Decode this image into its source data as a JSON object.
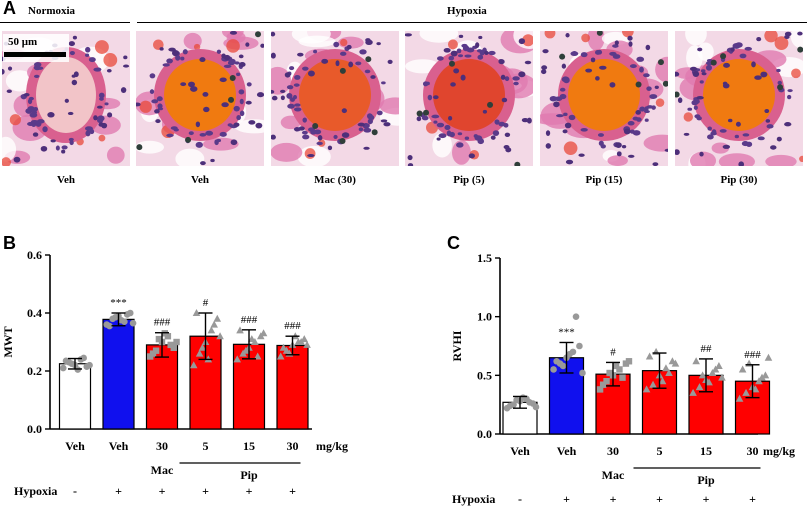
{
  "panel_a": {
    "letter": "A",
    "group_normoxia": "Normoxia",
    "group_hypoxia": "Hypoxia",
    "scale_bar": "50 μm",
    "captions": [
      "Veh",
      "Veh",
      "Mac (30)",
      "Pip (5)",
      "Pip (15)",
      "Pip (30)"
    ],
    "lumen_colors": [
      "#f2c4c8",
      "#f07a10",
      "#e85a2a",
      "#e0452e",
      "#f07a10",
      "#f07a10"
    ]
  },
  "panel_b": {
    "letter": "B"
  },
  "panel_c": {
    "letter": "C"
  },
  "colors": {
    "white_bar": "#ffffff",
    "blue_bar": "#1010ee",
    "red_bar": "#ff0000",
    "marker": "#999999"
  },
  "chart_data": [
    {
      "type": "bar",
      "panel": "B",
      "ylabel": "MWT",
      "ylim": [
        0,
        0.6
      ],
      "yticks": [
        "0.0",
        "0.2",
        "0.4",
        "0.6"
      ],
      "categories": [
        "Veh",
        "Veh",
        "30",
        "5",
        "15",
        "30"
      ],
      "unit_label": "mg/kg",
      "values": [
        0.225,
        0.378,
        0.29,
        0.32,
        0.292,
        0.288
      ],
      "errors": [
        0.018,
        0.022,
        0.042,
        0.08,
        0.05,
        0.032
      ],
      "bar_colors": [
        "#ffffff",
        "#1010ee",
        "#ff0000",
        "#ff0000",
        "#ff0000",
        "#ff0000"
      ],
      "markers": [
        "circle",
        "circle",
        "square",
        "triangle",
        "triangle",
        "triangle"
      ],
      "significance": [
        "",
        "***",
        "###",
        "#",
        "###",
        "###"
      ],
      "points": [
        [
          0.21,
          0.23,
          0.22,
          0.24,
          0.215,
          0.235,
          0.225,
          0.205,
          0.245,
          0.22
        ],
        [
          0.36,
          0.38,
          0.39,
          0.37,
          0.4,
          0.355,
          0.385,
          0.375,
          0.395,
          0.365
        ],
        [
          0.25,
          0.27,
          0.3,
          0.32,
          0.28,
          0.26,
          0.31,
          0.33,
          0.29,
          0.3
        ],
        [
          0.22,
          0.26,
          0.3,
          0.34,
          0.38,
          0.4,
          0.28,
          0.24,
          0.36,
          0.32
        ],
        [
          0.24,
          0.26,
          0.28,
          0.3,
          0.32,
          0.34,
          0.27,
          0.31,
          0.25,
          0.33
        ],
        [
          0.25,
          0.27,
          0.29,
          0.3,
          0.31,
          0.28,
          0.26,
          0.32,
          0.3,
          0.29
        ]
      ],
      "group_labels": [
        "Mac",
        "Pip"
      ],
      "hypoxia_label": "Hypoxia",
      "hypoxia_signs": [
        "-",
        "+",
        "+",
        "+",
        "+",
        "+"
      ]
    },
    {
      "type": "bar",
      "panel": "C",
      "ylabel": "RVHI",
      "ylim": [
        0,
        1.5
      ],
      "yticks": [
        "0.0",
        "0.5",
        "1.0",
        "1.5"
      ],
      "categories": [
        "Veh",
        "Veh",
        "30",
        "5",
        "15",
        "30"
      ],
      "unit_label": "mg/kg",
      "values": [
        0.27,
        0.65,
        0.51,
        0.54,
        0.5,
        0.45
      ],
      "errors": [
        0.05,
        0.13,
        0.1,
        0.15,
        0.14,
        0.14
      ],
      "bar_colors": [
        "#ffffff",
        "#1010ee",
        "#ff0000",
        "#ff0000",
        "#ff0000",
        "#ff0000"
      ],
      "markers": [
        "circle",
        "circle",
        "square",
        "triangle",
        "triangle",
        "triangle"
      ],
      "significance": [
        "",
        "***",
        "#",
        "",
        "##",
        "###"
      ],
      "points": [
        [
          0.22,
          0.25,
          0.28,
          0.3,
          0.26,
          0.24,
          0.29,
          0.31,
          0.27,
          0.23
        ],
        [
          0.55,
          0.6,
          0.65,
          0.7,
          0.75,
          0.62,
          0.58,
          0.68,
          1.0,
          0.52
        ],
        [
          0.38,
          0.45,
          0.5,
          0.55,
          0.6,
          0.42,
          0.52,
          0.58,
          0.48,
          0.62
        ],
        [
          0.38,
          0.42,
          0.5,
          0.56,
          0.62,
          0.66,
          0.7,
          0.45,
          0.52,
          0.6
        ],
        [
          0.35,
          0.4,
          0.46,
          0.52,
          0.58,
          0.62,
          0.5,
          0.44,
          0.55,
          0.48
        ],
        [
          0.3,
          0.35,
          0.4,
          0.45,
          0.5,
          0.55,
          0.6,
          0.38,
          0.48,
          0.65
        ]
      ],
      "group_labels": [
        "Mac",
        "Pip"
      ],
      "hypoxia_label": "Hypoxia",
      "hypoxia_signs": [
        "-",
        "+",
        "+",
        "+",
        "+",
        "+"
      ]
    }
  ]
}
